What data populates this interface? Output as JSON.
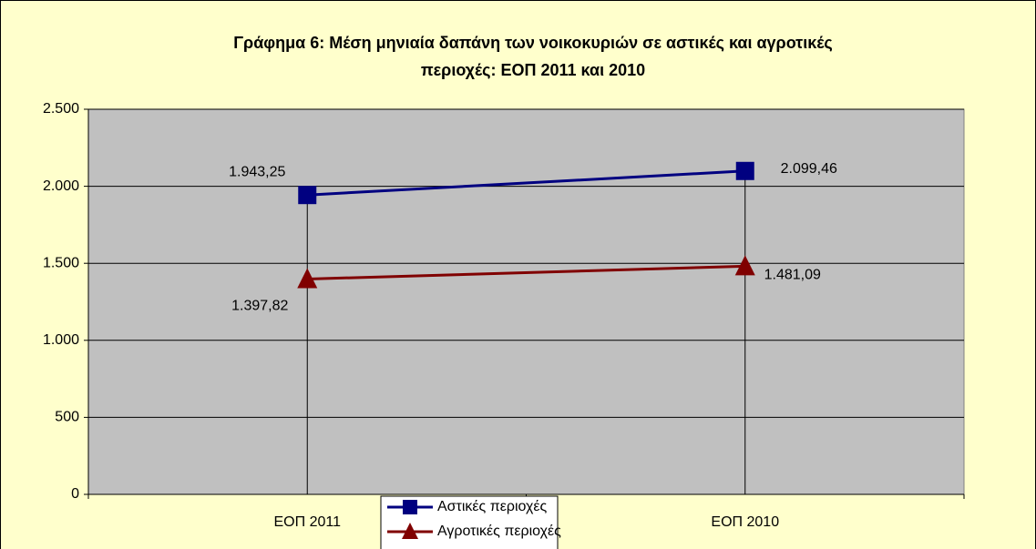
{
  "chart_data": {
    "type": "line",
    "title": [
      "Γράφημα 6: Μέση μηνιαία δαπάνη των  νοικοκυριών σε αστικές και αγροτικές",
      "περιοχές: ΕΟΠ 2011 και 2010"
    ],
    "categories": [
      "ΕΟΠ 2011",
      "ΕΟΠ 2010"
    ],
    "series": [
      {
        "name": "Αστικές περιοχές",
        "color": "#000080",
        "marker": "square",
        "values": [
          1943.25,
          2099.46
        ],
        "value_labels": [
          "1.943,25",
          "2.099,46"
        ]
      },
      {
        "name": "Αγροτικές περιοχές",
        "color": "#800000",
        "marker": "triangle",
        "values": [
          1397.82,
          1481.09
        ],
        "value_labels": [
          "1.397,82",
          "1.481,09"
        ]
      }
    ],
    "ylim": [
      0,
      2500
    ],
    "yticks": [
      0,
      500,
      {
        "value": 1000,
        "label": "1.000"
      },
      {
        "value": 1500,
        "label": "1.500"
      },
      {
        "value": 2000,
        "label": "2.000"
      },
      {
        "value": 2500,
        "label": "2.500"
      }
    ],
    "grid": true,
    "drop_lines": true,
    "legend": "bottom"
  }
}
